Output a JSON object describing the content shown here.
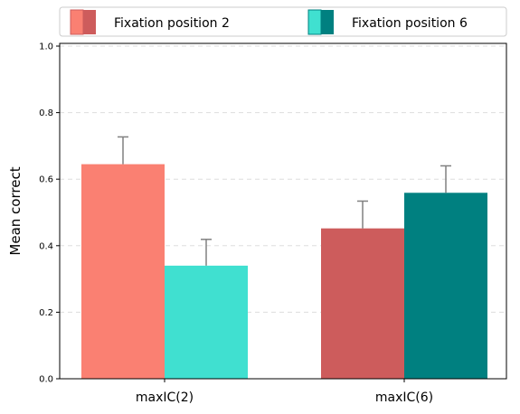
{
  "chart_data": {
    "type": "bar",
    "categories": [
      "maxIC(2)",
      "maxIC(6)"
    ],
    "series": [
      {
        "name": "Fixation position 2",
        "values": [
          0.645,
          0.452
        ],
        "errors": [
          0.082,
          0.082
        ],
        "colors": [
          "#FA8072",
          "#CD5C5C"
        ]
      },
      {
        "name": "Fixation position 6",
        "values": [
          0.34,
          0.559
        ],
        "errors": [
          0.079,
          0.081
        ],
        "colors": [
          "#40E0D0",
          "#008080"
        ]
      }
    ],
    "xlabel": "",
    "ylabel": "Mean correct",
    "ylim": [
      0,
      1.0
    ],
    "yticks": [
      0.0,
      0.2,
      0.4,
      0.6,
      0.8,
      1.0
    ],
    "ytick_labels": [
      "0.0",
      "0.2",
      "0.4",
      "0.6",
      "0.8",
      "1.0"
    ],
    "grid": "horizontal-dashed",
    "legend_position": "top",
    "error_bar_color": "#808080"
  }
}
